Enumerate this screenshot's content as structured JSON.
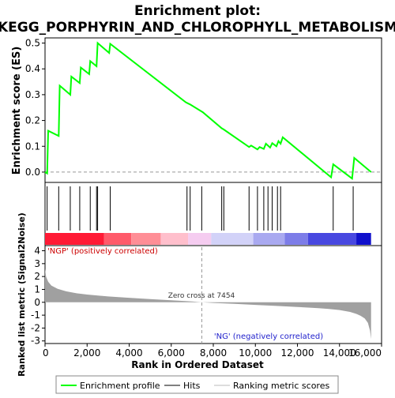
{
  "chart_data": {
    "type": "line",
    "title_line1": "Enrichment plot:",
    "title_line2": "KEGG_PORPHYRIN_AND_CHLOROPHYLL_METABOLISM",
    "es_panel": {
      "ylabel": "Enrichment score (ES)",
      "ylim": [
        -0.04,
        0.52
      ],
      "yticks": [
        "0.0",
        "0.1",
        "0.2",
        "0.3",
        "0.4",
        "0.5"
      ],
      "ytick_values": [
        0.0,
        0.1,
        0.2,
        0.3,
        0.4,
        0.5
      ],
      "series": [
        {
          "name": "Enrichment profile",
          "color": "#00ff00",
          "x": [
            0,
            100,
            150,
            650,
            700,
            1200,
            1250,
            1650,
            1700,
            2100,
            2150,
            2450,
            2500,
            3050,
            3100,
            6700,
            6900,
            7500,
            8400,
            8500,
            9700,
            9800,
            10100,
            10200,
            10400,
            10500,
            10700,
            10800,
            11000,
            11100,
            11200,
            11300,
            13600,
            13700,
            14600,
            14700,
            15500
          ],
          "y": [
            0.0,
            -0.005,
            0.16,
            0.14,
            0.335,
            0.3,
            0.37,
            0.345,
            0.405,
            0.38,
            0.43,
            0.41,
            0.5,
            0.462,
            0.497,
            0.27,
            0.262,
            0.232,
            0.17,
            0.165,
            0.097,
            0.103,
            0.088,
            0.097,
            0.09,
            0.11,
            0.095,
            0.112,
            0.1,
            0.12,
            0.11,
            0.135,
            -0.02,
            0.03,
            -0.025,
            0.055,
            0.0
          ]
        }
      ]
    },
    "hits_panel": {
      "legend_label": "Hits",
      "positions": [
        100,
        650,
        1200,
        1650,
        2150,
        2450,
        2500,
        3100,
        6750,
        6900,
        7450,
        8400,
        8500,
        9700,
        10100,
        10400,
        10600,
        10800,
        11050,
        11200,
        13700,
        14650
      ]
    },
    "heat_bar": {
      "segments": [
        {
          "from": 0,
          "to": 2800,
          "color": "#ff1a35"
        },
        {
          "from": 2800,
          "to": 4100,
          "color": "#ff5a6a"
        },
        {
          "from": 4100,
          "to": 5500,
          "color": "#ff8e96"
        },
        {
          "from": 5500,
          "to": 6800,
          "color": "#ffbfcc"
        },
        {
          "from": 6800,
          "to": 7900,
          "color": "#f5ccf0"
        },
        {
          "from": 7900,
          "to": 9900,
          "color": "#d2d2f8"
        },
        {
          "from": 9900,
          "to": 11400,
          "color": "#a9a9f0"
        },
        {
          "from": 11400,
          "to": 12500,
          "color": "#7d7de8"
        },
        {
          "from": 12500,
          "to": 14800,
          "color": "#4848e0"
        },
        {
          "from": 14800,
          "to": 15500,
          "color": "#1010cc"
        }
      ]
    },
    "metric_panel": {
      "ylabel": "Ranked list metric (Signal2Noise)",
      "ylim": [
        -3.2,
        4.4
      ],
      "yticks": [
        "-3",
        "-2",
        "-1",
        "0",
        "1",
        "2",
        "3",
        "4"
      ],
      "ytick_values": [
        -3,
        -2,
        -1,
        0,
        1,
        2,
        3,
        4
      ],
      "legend_label": "Ranking metric scores",
      "pos_label": "'NGP' (positively correlated)",
      "neg_label": "'NG' (negatively correlated)",
      "zero_cross_label": "Zero cross at 7454",
      "zero_cross": 7454,
      "profile_x": [
        0,
        50,
        150,
        300,
        600,
        1000,
        1500,
        2000,
        3000,
        4000,
        5000,
        6000,
        7000,
        7454,
        8000,
        9000,
        10000,
        11000,
        12000,
        13000,
        13500,
        14000,
        14500,
        14800,
        15000,
        15200,
        15350,
        15450,
        15500
      ],
      "profile_y": [
        2.6,
        2.0,
        1.6,
        1.3,
        1.05,
        0.85,
        0.7,
        0.6,
        0.45,
        0.35,
        0.25,
        0.15,
        0.06,
        0.0,
        -0.05,
        -0.12,
        -0.2,
        -0.28,
        -0.36,
        -0.46,
        -0.52,
        -0.6,
        -0.75,
        -0.9,
        -1.05,
        -1.25,
        -1.6,
        -2.2,
        -2.85
      ]
    },
    "xaxis": {
      "xlabel": "Rank in Ordered Dataset",
      "xlim": [
        0,
        16000
      ],
      "xticks": [
        "0",
        "2,000",
        "4,000",
        "6,000",
        "8,000",
        "10,000",
        "12,000",
        "14,000",
        "16,000"
      ],
      "xtick_values": [
        0,
        2000,
        4000,
        6000,
        8000,
        10000,
        12000,
        14000,
        16000
      ]
    },
    "legend": {
      "placement": "bottom",
      "items": [
        "Enrichment profile",
        "Hits",
        "Ranking metric scores"
      ]
    },
    "colors": {
      "profile": "#00ff00",
      "hits": "#000000",
      "metric_fill": "#a0a0a0",
      "pos_label": "#cc0000",
      "neg_label": "#2222cc"
    }
  }
}
